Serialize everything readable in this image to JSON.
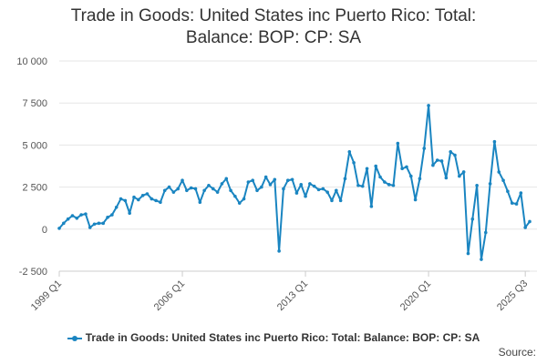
{
  "chart_data": {
    "type": "line",
    "title_lines": [
      "Trade in Goods: United States inc Puerto Rico: Total:",
      "Balance: BOP: CP: SA"
    ],
    "xlabel": "",
    "ylabel": "",
    "ylim": [
      -2500,
      10000
    ],
    "y_ticks": [
      -2500,
      0,
      2500,
      5000,
      7500,
      10000
    ],
    "y_tick_labels": [
      "-2 500",
      "0",
      "2 500",
      "5 000",
      "7 500",
      "10 000"
    ],
    "grid": true,
    "x_start": "1999 Q1",
    "x_tick_labels": [
      "1999 Q1",
      "2006 Q1",
      "2013 Q1",
      "2020 Q1",
      "2025 Q3"
    ],
    "x_tick_index": [
      0,
      28,
      56,
      84,
      106
    ],
    "legend_position": "bottom",
    "series": [
      {
        "name": "Trade in Goods: United States inc Puerto Rico: Total: Balance: BOP: CP: SA",
        "color": "#1a85c1",
        "values": [
          50,
          350,
          600,
          800,
          650,
          850,
          900,
          100,
          300,
          350,
          350,
          700,
          850,
          1300,
          1800,
          1700,
          950,
          1900,
          1750,
          2000,
          2100,
          1800,
          1700,
          1600,
          2300,
          2500,
          2200,
          2400,
          2900,
          2300,
          2450,
          2400,
          1600,
          2300,
          2600,
          2400,
          2200,
          2700,
          3000,
          2300,
          1950,
          1550,
          1800,
          2800,
          2900,
          2300,
          2500,
          3100,
          2650,
          2950,
          -1300,
          2400,
          2900,
          2950,
          2150,
          2650,
          1950,
          2700,
          2550,
          2350,
          2400,
          2200,
          1700,
          2300,
          1700,
          3000,
          4600,
          3950,
          2600,
          2550,
          3600,
          1350,
          3750,
          3100,
          2800,
          2650,
          2600,
          5100,
          3600,
          3700,
          3150,
          1750,
          3000,
          4800,
          7350,
          3800,
          4100,
          4050,
          3050,
          4600,
          4400,
          3150,
          3400,
          -1450,
          600,
          2600,
          -1800,
          -200,
          2700,
          5200,
          3400,
          2900,
          2250,
          1550,
          1500,
          2150,
          100,
          450
        ]
      }
    ]
  },
  "legend": {
    "label": "Trade in Goods: United States inc Puerto Rico: Total: Balance: BOP: CP: SA"
  },
  "footer": {
    "source_label": "Source:"
  }
}
